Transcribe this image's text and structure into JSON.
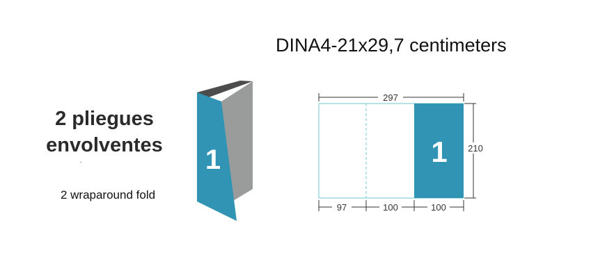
{
  "heading": {
    "line1": "2 pliegues",
    "line2": "envolventes",
    "subtitle": "2 wraparound fold"
  },
  "format": {
    "label": "DINA4-21x29,7 centimeters"
  },
  "folded_brochure": {
    "panel_number": "1"
  },
  "flat_sheet": {
    "panel_number": "1",
    "total_width": "297",
    "height": "210",
    "panel_widths": [
      "97",
      "100",
      "100"
    ]
  },
  "colors": {
    "accent": "#3294b4",
    "guide": "#6fc6d6",
    "dim_line": "#333333",
    "back_panel": "#9a9c9b",
    "top_dark": "#4c4c4c"
  }
}
